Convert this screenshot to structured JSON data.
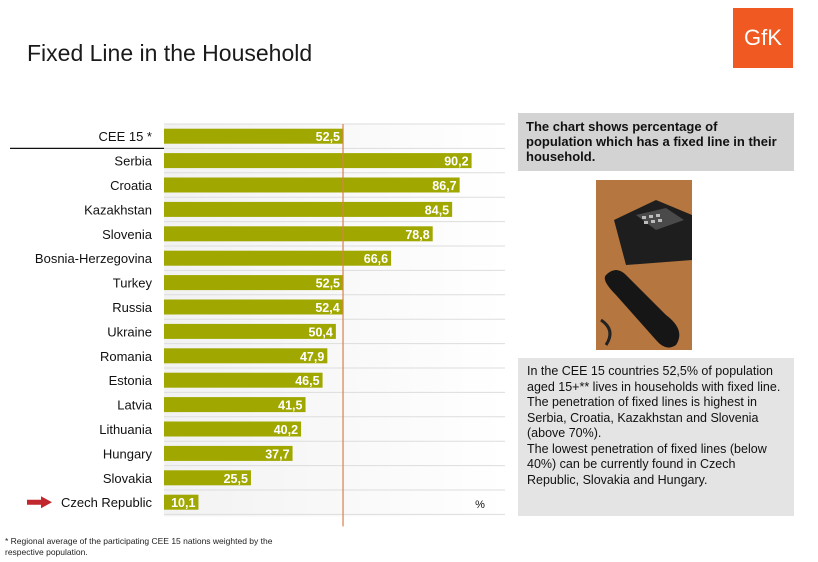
{
  "page": {
    "title": "Fixed Line in the Household",
    "logo_text": "GfK",
    "footnote": "* Regional average of the participating CEE 15 nations weighted by the respective population.",
    "info_box": "The chart shows percentage of population which has a fixed line in their household.",
    "summary": [
      "In the CEE 15 countries 52,5% of population aged 15+** lives in households with fixed line.",
      "The penetration of fixed lines is highest in Serbia, Croatia, Kazakhstan and Slovenia (above 70%).",
      "The lowest penetration of fixed lines (below 40%) can be currently found in Czech Republic, Slovakia and Hungary."
    ],
    "colors": {
      "bar": "#a0a800",
      "reference_line": "#d9824b",
      "highlight_arrow": "#c0282d",
      "logo": "#f05a22"
    }
  },
  "chart_data": {
    "type": "bar",
    "orientation": "horizontal",
    "categories": [
      "CEE 15 *",
      "Serbia",
      "Croatia",
      "Kazakhstan",
      "Slovenia",
      "Bosnia-Herzegovina",
      "Turkey",
      "Russia",
      "Ukraine",
      "Romania",
      "Estonia",
      "Latvia",
      "Lithuania",
      "Hungary",
      "Slovakia",
      "Czech Republic"
    ],
    "values": [
      52.5,
      90.2,
      86.7,
      84.5,
      78.8,
      66.6,
      52.5,
      52.4,
      50.4,
      47.9,
      46.5,
      41.5,
      40.2,
      37.7,
      25.5,
      10.1
    ],
    "value_labels": [
      "52,5",
      "90,2",
      "86,7",
      "84,5",
      "78,8",
      "66,6",
      "52,5",
      "52,4",
      "50,4",
      "47,9",
      "46,5",
      "41,5",
      "40,2",
      "37,7",
      "25,5",
      "10,1"
    ],
    "unit_label": "%",
    "xlim": [
      0,
      100
    ],
    "reference_value": 52.5,
    "highlighted_category": "Czech Republic",
    "grid": false
  }
}
